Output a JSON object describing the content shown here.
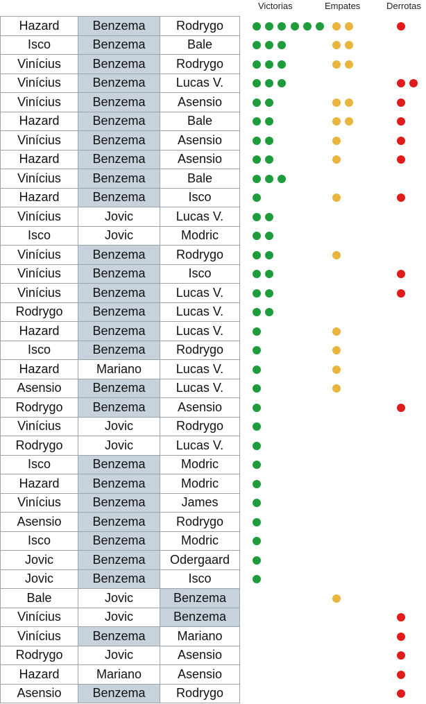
{
  "chart_data": {
    "type": "table",
    "columns": [
      "Victorias",
      "Empates",
      "Derrotas"
    ],
    "colors": {
      "victorias": "#1e9b3b",
      "empates": "#eab53f",
      "derrotas": "#e01b1b",
      "highlight": "#c8d2dc",
      "border": "#9aa3ab"
    },
    "highlight_player": "Benzema",
    "rows": [
      {
        "players": [
          "Hazard",
          "Benzema",
          "Rodrygo"
        ],
        "victorias": 6,
        "empates": 2,
        "derrotas": 1
      },
      {
        "players": [
          "Isco",
          "Benzema",
          "Bale"
        ],
        "victorias": 3,
        "empates": 2,
        "derrotas": 0
      },
      {
        "players": [
          "Vinícius",
          "Benzema",
          "Rodrygo"
        ],
        "victorias": 3,
        "empates": 2,
        "derrotas": 0
      },
      {
        "players": [
          "Vinícius",
          "Benzema",
          "Lucas V."
        ],
        "victorias": 3,
        "empates": 0,
        "derrotas": 2
      },
      {
        "players": [
          "Vinícius",
          "Benzema",
          "Asensio"
        ],
        "victorias": 2,
        "empates": 2,
        "derrotas": 1
      },
      {
        "players": [
          "Hazard",
          "Benzema",
          "Bale"
        ],
        "victorias": 2,
        "empates": 2,
        "derrotas": 1
      },
      {
        "players": [
          "Vinícius",
          "Benzema",
          "Asensio"
        ],
        "victorias": 2,
        "empates": 1,
        "derrotas": 1
      },
      {
        "players": [
          "Hazard",
          "Benzema",
          "Asensio"
        ],
        "victorias": 2,
        "empates": 1,
        "derrotas": 1
      },
      {
        "players": [
          "Vinícius",
          "Benzema",
          "Bale"
        ],
        "victorias": 3,
        "empates": 0,
        "derrotas": 0
      },
      {
        "players": [
          "Hazard",
          "Benzema",
          "Isco"
        ],
        "victorias": 1,
        "empates": 1,
        "derrotas": 1
      },
      {
        "players": [
          "Vinícius",
          "Jovic",
          "Lucas V."
        ],
        "victorias": 2,
        "empates": 0,
        "derrotas": 0
      },
      {
        "players": [
          "Isco",
          "Jovic",
          "Modric"
        ],
        "victorias": 2,
        "empates": 0,
        "derrotas": 0
      },
      {
        "players": [
          "Vinícius",
          "Benzema",
          "Rodrygo"
        ],
        "victorias": 2,
        "empates": 1,
        "derrotas": 0
      },
      {
        "players": [
          "Vinícius",
          "Benzema",
          "Isco"
        ],
        "victorias": 2,
        "empates": 0,
        "derrotas": 1
      },
      {
        "players": [
          "Vinícius",
          "Benzema",
          "Lucas V."
        ],
        "victorias": 2,
        "empates": 0,
        "derrotas": 1
      },
      {
        "players": [
          "Rodrygo",
          "Benzema",
          "Lucas V."
        ],
        "victorias": 2,
        "empates": 0,
        "derrotas": 0
      },
      {
        "players": [
          "Hazard",
          "Benzema",
          "Lucas V."
        ],
        "victorias": 1,
        "empates": 1,
        "derrotas": 0
      },
      {
        "players": [
          "Isco",
          "Benzema",
          "Rodrygo"
        ],
        "victorias": 1,
        "empates": 1,
        "derrotas": 0
      },
      {
        "players": [
          "Hazard",
          "Mariano",
          "Lucas V."
        ],
        "victorias": 1,
        "empates": 1,
        "derrotas": 0
      },
      {
        "players": [
          "Asensio",
          "Benzema",
          "Lucas V."
        ],
        "victorias": 1,
        "empates": 1,
        "derrotas": 0
      },
      {
        "players": [
          "Rodrygo",
          "Benzema",
          "Asensio"
        ],
        "victorias": 1,
        "empates": 0,
        "derrotas": 1
      },
      {
        "players": [
          "Vinícius",
          "Jovic",
          "Rodrygo"
        ],
        "victorias": 1,
        "empates": 0,
        "derrotas": 0
      },
      {
        "players": [
          "Rodrygo",
          "Jovic",
          "Lucas V."
        ],
        "victorias": 1,
        "empates": 0,
        "derrotas": 0
      },
      {
        "players": [
          "Isco",
          "Benzema",
          "Modric"
        ],
        "victorias": 1,
        "empates": 0,
        "derrotas": 0
      },
      {
        "players": [
          "Hazard",
          "Benzema",
          "Modric"
        ],
        "victorias": 1,
        "empates": 0,
        "derrotas": 0
      },
      {
        "players": [
          "Vinícius",
          "Benzema",
          "James"
        ],
        "victorias": 1,
        "empates": 0,
        "derrotas": 0
      },
      {
        "players": [
          "Asensio",
          "Benzema",
          "Rodrygo"
        ],
        "victorias": 1,
        "empates": 0,
        "derrotas": 0
      },
      {
        "players": [
          "Isco",
          "Benzema",
          "Modric"
        ],
        "victorias": 1,
        "empates": 0,
        "derrotas": 0
      },
      {
        "players": [
          "Jovic",
          "Benzema",
          "Odergaard"
        ],
        "victorias": 1,
        "empates": 0,
        "derrotas": 0
      },
      {
        "players": [
          "Jovic",
          "Benzema",
          "Isco"
        ],
        "victorias": 1,
        "empates": 0,
        "derrotas": 0
      },
      {
        "players": [
          "Bale",
          "Jovic",
          "Benzema"
        ],
        "victorias": 0,
        "empates": 1,
        "derrotas": 0
      },
      {
        "players": [
          "Vinícius",
          "Jovic",
          "Benzema"
        ],
        "victorias": 0,
        "empates": 0,
        "derrotas": 1
      },
      {
        "players": [
          "Vinícius",
          "Benzema",
          "Mariano"
        ],
        "victorias": 0,
        "empates": 0,
        "derrotas": 1
      },
      {
        "players": [
          "Rodrygo",
          "Jovic",
          "Asensio"
        ],
        "victorias": 0,
        "empates": 0,
        "derrotas": 1
      },
      {
        "players": [
          "Hazard",
          "Mariano",
          "Asensio"
        ],
        "victorias": 0,
        "empates": 0,
        "derrotas": 1
      },
      {
        "players": [
          "Asensio",
          "Benzema",
          "Rodrygo"
        ],
        "victorias": 0,
        "empates": 0,
        "derrotas": 1
      }
    ]
  }
}
